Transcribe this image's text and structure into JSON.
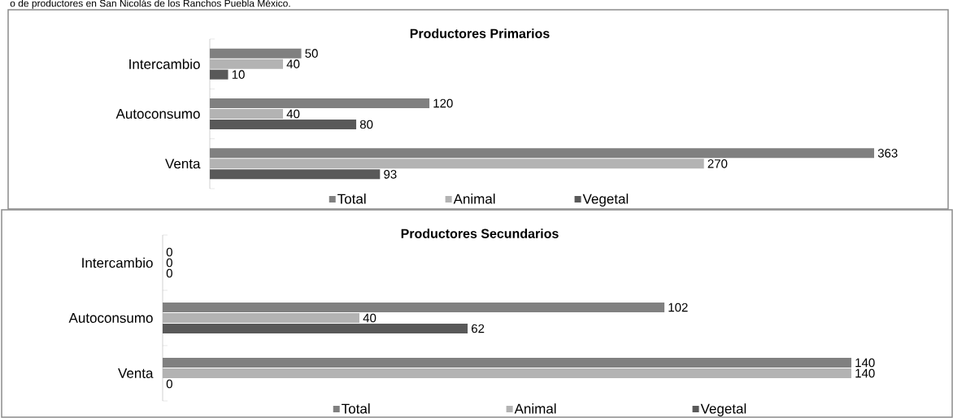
{
  "chart_data": [
    {
      "type": "bar",
      "orientation": "horizontal",
      "title": "Productores Primarios",
      "annotations": [
        "o de productores en San Nicolás de los Ranchos Puebla México."
      ],
      "categories": [
        "Intercambio",
        "Autoconsumo",
        "Venta"
      ],
      "series": [
        {
          "name": "Total",
          "color": "#808080",
          "values": [
            50,
            120,
            363
          ]
        },
        {
          "name": "Animal",
          "color": "#b3b3b3",
          "values": [
            40,
            40,
            270
          ]
        },
        {
          "name": "Vegetal",
          "color": "#595959",
          "values": [
            10,
            80,
            93
          ]
        }
      ],
      "data_labels": true,
      "legend": "bottom"
    },
    {
      "type": "bar",
      "orientation": "horizontal",
      "title": "Productores Secundarios",
      "categories": [
        "Intercambio",
        "Autoconsumo",
        "Venta"
      ],
      "series": [
        {
          "name": "Total",
          "color": "#808080",
          "values": [
            0,
            102,
            140
          ]
        },
        {
          "name": "Animal",
          "color": "#b3b3b3",
          "values": [
            0,
            40,
            140
          ]
        },
        {
          "name": "Vegetal",
          "color": "#595959",
          "values": [
            0,
            62,
            0
          ]
        }
      ],
      "data_labels": true,
      "legend": "bottom"
    }
  ]
}
